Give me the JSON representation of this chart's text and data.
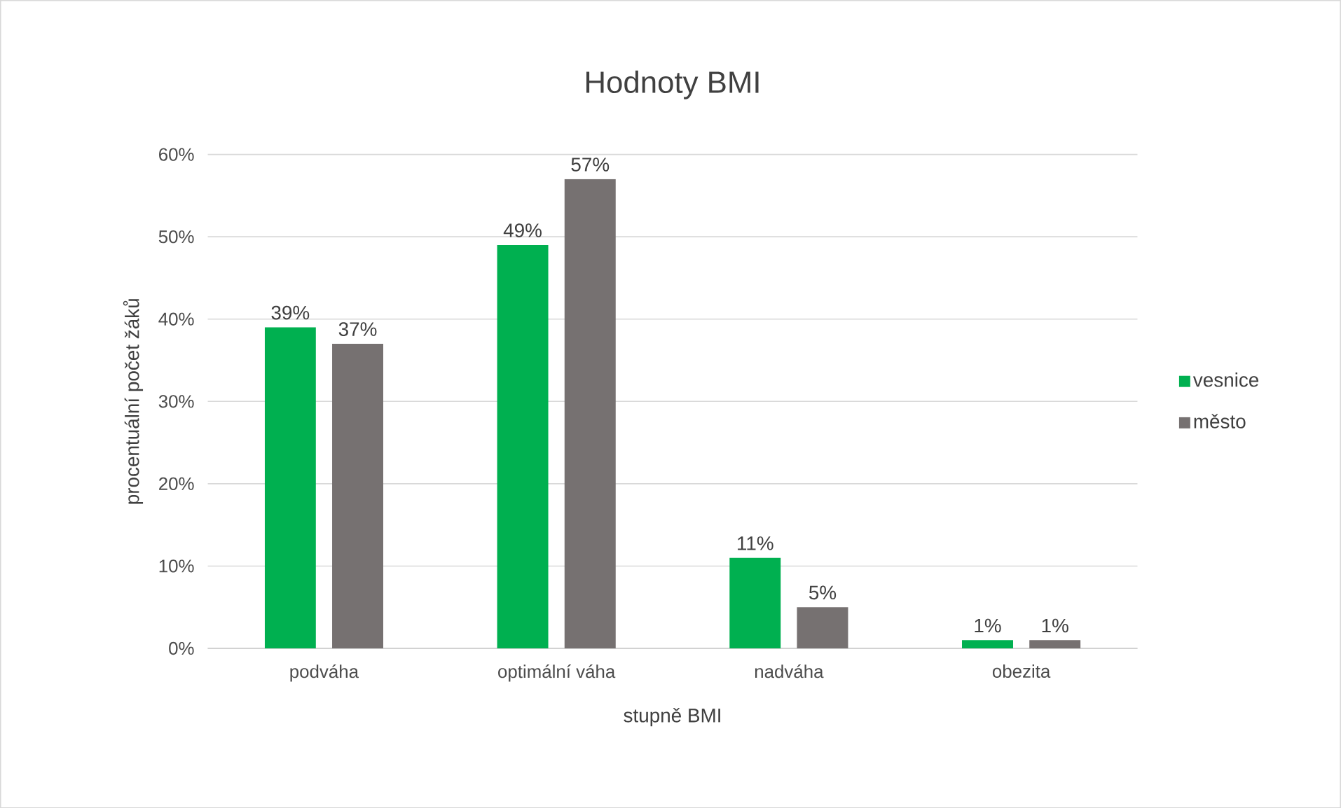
{
  "chart_data": {
    "type": "bar",
    "title": "Hodnoty BMI",
    "xlabel": "stupně BMI",
    "ylabel": "procentuální počet žáků",
    "categories": [
      "podváha",
      "optimální váha",
      "nadváha",
      "obezita"
    ],
    "series": [
      {
        "name": "vesnice",
        "color": "#00b050",
        "values": [
          39,
          49,
          11,
          1
        ],
        "value_labels": [
          "39%",
          "49%",
          "11%",
          "1%"
        ]
      },
      {
        "name": "město",
        "color": "#767171",
        "values": [
          37,
          57,
          5,
          1
        ],
        "value_labels": [
          "37%",
          "57%",
          "5%",
          "1%"
        ]
      }
    ],
    "ylim": [
      0,
      60
    ],
    "yticks": [
      {
        "value": 0,
        "label": "0%"
      },
      {
        "value": 10,
        "label": "10%"
      },
      {
        "value": 20,
        "label": "20%"
      },
      {
        "value": 30,
        "label": "30%"
      },
      {
        "value": 40,
        "label": "40%"
      },
      {
        "value": 50,
        "label": "50%"
      },
      {
        "value": 60,
        "label": "60%"
      }
    ],
    "grid": "y",
    "legend": "right"
  }
}
